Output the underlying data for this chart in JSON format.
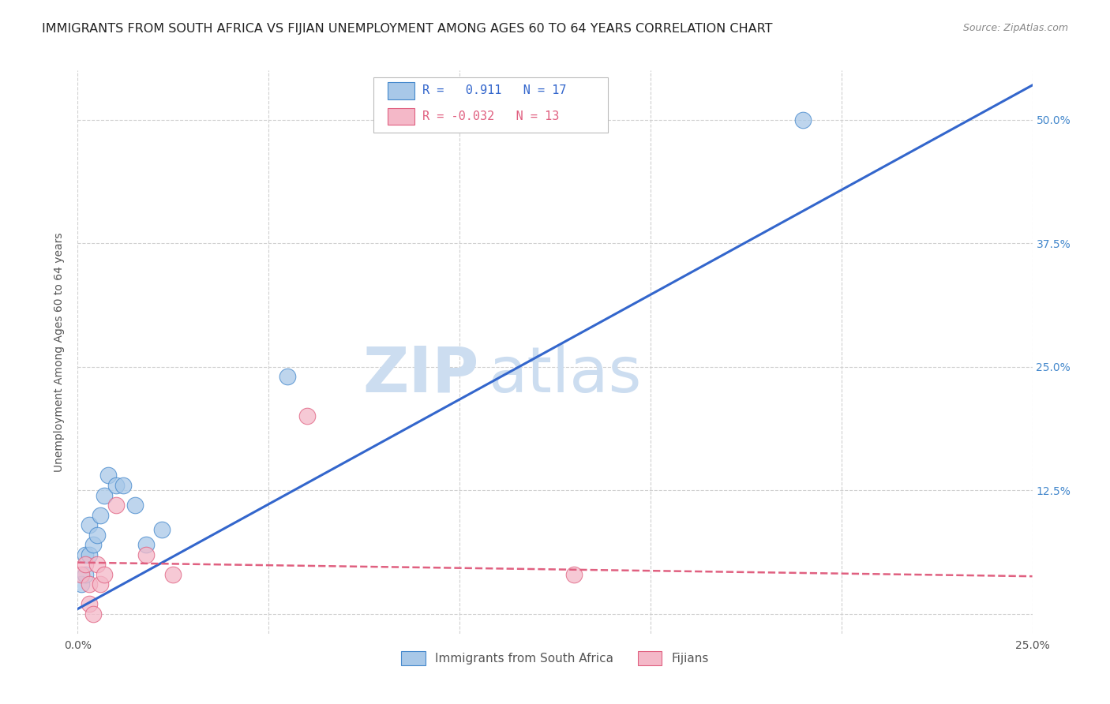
{
  "title": "IMMIGRANTS FROM SOUTH AFRICA VS FIJIAN UNEMPLOYMENT AMONG AGES 60 TO 64 YEARS CORRELATION CHART",
  "source": "Source: ZipAtlas.com",
  "ylabel": "Unemployment Among Ages 60 to 64 years",
  "xlim": [
    0.0,
    0.25
  ],
  "ylim": [
    -0.02,
    0.55
  ],
  "xticks": [
    0.0,
    0.05,
    0.1,
    0.15,
    0.2,
    0.25
  ],
  "xticklabels": [
    "0.0%",
    "",
    "",
    "",
    "",
    "25.0%"
  ],
  "yticks": [
    0.0,
    0.125,
    0.25,
    0.375,
    0.5
  ],
  "yticklabels": [
    "",
    "12.5%",
    "25.0%",
    "37.5%",
    "50.0%"
  ],
  "blue_R": 0.911,
  "blue_N": 17,
  "pink_R": -0.032,
  "pink_N": 13,
  "blue_fill": "#a8c8e8",
  "pink_fill": "#f4b8c8",
  "blue_edge": "#4488cc",
  "pink_edge": "#e06080",
  "blue_line_color": "#3366cc",
  "pink_line_color": "#e06080",
  "watermark_zip": "ZIP",
  "watermark_atlas": "atlas",
  "blue_scatter_x": [
    0.001,
    0.002,
    0.002,
    0.003,
    0.003,
    0.004,
    0.005,
    0.006,
    0.007,
    0.008,
    0.01,
    0.012,
    0.015,
    0.018,
    0.022,
    0.055,
    0.19
  ],
  "blue_scatter_y": [
    0.03,
    0.06,
    0.04,
    0.09,
    0.06,
    0.07,
    0.08,
    0.1,
    0.12,
    0.14,
    0.13,
    0.13,
    0.11,
    0.07,
    0.085,
    0.24,
    0.5
  ],
  "pink_scatter_x": [
    0.001,
    0.002,
    0.003,
    0.003,
    0.004,
    0.005,
    0.006,
    0.007,
    0.01,
    0.018,
    0.025,
    0.06,
    0.13
  ],
  "pink_scatter_y": [
    0.04,
    0.05,
    0.03,
    0.01,
    0.0,
    0.05,
    0.03,
    0.04,
    0.11,
    0.06,
    0.04,
    0.2,
    0.04
  ],
  "blue_line_x": [
    0.0,
    0.25
  ],
  "blue_line_y": [
    0.005,
    0.535
  ],
  "pink_line_x": [
    0.0,
    0.25
  ],
  "pink_line_y": [
    0.052,
    0.038
  ],
  "grid_color": "#d0d0d0",
  "bg_color": "#ffffff",
  "title_fontsize": 11.5,
  "ylabel_fontsize": 10,
  "tick_fontsize": 10,
  "legend_fontsize": 11,
  "watermark_color": "#ccddf0",
  "watermark_fontsize_zip": 58,
  "watermark_fontsize_atlas": 58
}
